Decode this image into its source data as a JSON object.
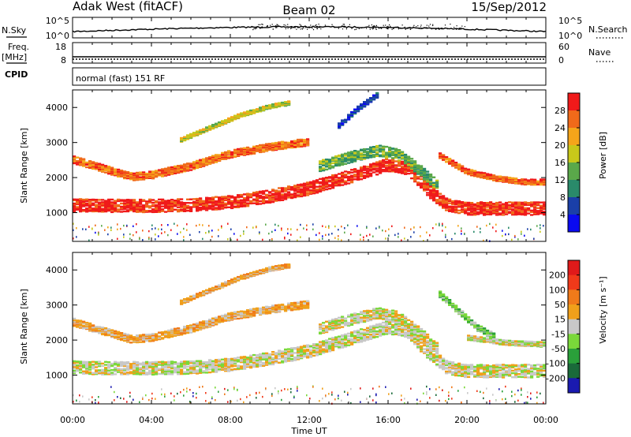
{
  "header": {
    "station": "Adak West (fitACF)",
    "beam": "Beam 02",
    "date": "15/Sep/2012"
  },
  "strips": {
    "nsky_label": "N.Sky",
    "nsearch_label": "N.Search",
    "nsky_ticks": [
      "10^5",
      "10^0"
    ],
    "nsearch_ticks": [
      "10^5",
      "10^0"
    ],
    "freq_label": "Freq.",
    "freq_unit": "[MHz]",
    "freq_ticks": [
      "18",
      "8"
    ],
    "nave_label": "Nave",
    "nave_ticks": [
      "60",
      "0"
    ],
    "cpid_label": "CPID",
    "cpid_value": "normal (fast) 151 RF"
  },
  "x_axis": {
    "label": "Time UT",
    "ticks": [
      "00:00",
      "04:00",
      "08:00",
      "12:00",
      "16:00",
      "20:00",
      "00:00"
    ]
  },
  "chart_data": [
    {
      "type": "heatmap",
      "panel": "power",
      "ylabel": "Slant Range [km]",
      "yticks": [
        "4000",
        "3000",
        "2000",
        "1000"
      ],
      "ylim": [
        180,
        4500
      ],
      "xlim_hours": [
        0,
        24
      ],
      "colorbar_label": "Power [dB]",
      "colorbar_ticks": [
        "28",
        "24",
        "20",
        "16",
        "12",
        "8",
        "4"
      ],
      "colors": [
        "#0a0af0",
        "#1a3fa8",
        "#2a8a6a",
        "#5aa84a",
        "#c8c81a",
        "#f5a51a",
        "#f06a1a",
        "#f01a1a"
      ],
      "bands": [
        {
          "t": [
            0,
            2,
            4,
            6,
            8,
            10,
            12,
            14,
            16,
            17,
            18,
            19,
            20,
            22,
            24
          ],
          "r": [
            1250,
            1230,
            1230,
            1250,
            1330,
            1500,
            1720,
            2050,
            2400,
            2300,
            1700,
            1250,
            1150,
            1150,
            1150
          ],
          "w": 380,
          "level": 7
        },
        {
          "t": [
            0,
            1.5,
            3,
            4,
            6,
            8,
            10,
            12
          ],
          "r": [
            2550,
            2300,
            2050,
            2100,
            2350,
            2700,
            2900,
            3050
          ],
          "w": 220,
          "level": 6
        },
        {
          "t": [
            5.5,
            7,
            8.5,
            10,
            11
          ],
          "r": [
            3100,
            3450,
            3800,
            4050,
            4150
          ],
          "w": 120,
          "level": 4
        },
        {
          "t": [
            12.5,
            14,
            15.5,
            16.5,
            17.5,
            18.5
          ],
          "r": [
            2350,
            2600,
            2800,
            2700,
            2300,
            1800
          ],
          "w": 320,
          "level": 3
        },
        {
          "t": [
            13.5,
            14.5,
            15.5
          ],
          "r": [
            3500,
            4000,
            4400
          ],
          "w": 150,
          "level": 1
        },
        {
          "t": [
            18.5,
            20,
            21.5,
            23,
            24
          ],
          "r": [
            2700,
            2200,
            2000,
            1900,
            1900
          ],
          "w": 160,
          "level": 6
        }
      ]
    },
    {
      "type": "heatmap",
      "panel": "velocity",
      "ylabel": "Slant Range [km]",
      "yticks": [
        "4000",
        "3000",
        "2000",
        "1000"
      ],
      "ylim": [
        180,
        4500
      ],
      "xlim_hours": [
        0,
        24
      ],
      "colorbar_label": "Velocity [m s⁻¹]",
      "colorbar_ticks": [
        "200",
        "100",
        "50",
        "15",
        "-15",
        "-50",
        "-100",
        "-200"
      ],
      "colors": [
        "#1a1ab0",
        "#1a6a3a",
        "#2aa03a",
        "#7ad83a",
        "#c8c8c8",
        "#f0a01a",
        "#f07a1a",
        "#f03a1a",
        "#e01a1a"
      ],
      "bands": [
        {
          "t": [
            0,
            2,
            4,
            6,
            8,
            10,
            12,
            14,
            16,
            17,
            18,
            19,
            20,
            22,
            24
          ],
          "r": [
            1250,
            1230,
            1230,
            1250,
            1330,
            1500,
            1720,
            2050,
            2400,
            2300,
            1700,
            1250,
            1150,
            1150,
            1150
          ],
          "w": 380,
          "level": 4
        },
        {
          "t": [
            0,
            1.5,
            3,
            4,
            6,
            8,
            10,
            12
          ],
          "r": [
            2550,
            2300,
            2050,
            2100,
            2350,
            2700,
            2900,
            3050
          ],
          "w": 220,
          "level": 5
        },
        {
          "t": [
            5.5,
            7,
            8.5,
            10,
            11
          ],
          "r": [
            3100,
            3450,
            3800,
            4050,
            4150
          ],
          "w": 120,
          "level": 5
        },
        {
          "t": [
            12.5,
            14,
            15.5,
            16.5,
            17.5,
            18.5
          ],
          "r": [
            2350,
            2600,
            2800,
            2700,
            2300,
            1800
          ],
          "w": 320,
          "level": 4
        },
        {
          "t": [
            18.5,
            19.5,
            20.5,
            21.5
          ],
          "r": [
            3400,
            2900,
            2400,
            2100
          ],
          "w": 180,
          "level": 3
        },
        {
          "t": [
            20,
            22,
            24
          ],
          "r": [
            2100,
            1950,
            1900
          ],
          "w": 140,
          "level": 4
        }
      ]
    }
  ]
}
